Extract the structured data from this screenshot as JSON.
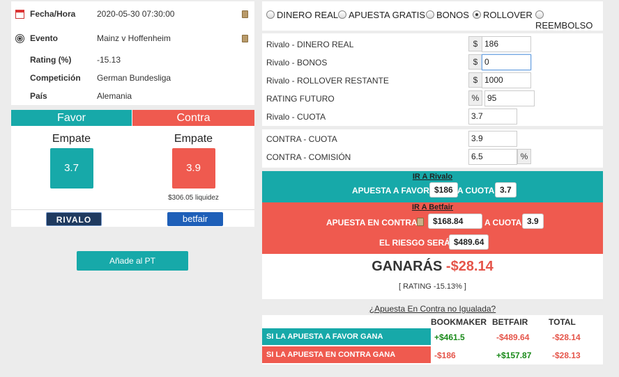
{
  "event_info": {
    "fecha_label": "Fecha/Hora",
    "fecha_value": "2020-05-30 07:30:00",
    "evento_label": "Evento",
    "evento_value": "Mainz v Hoffenheim",
    "rating_label": "Rating (%)",
    "rating_value": "-15.13",
    "competicion_label": "Competición",
    "competicion_value": "German Bundesliga",
    "pais_label": "País",
    "pais_value": "Alemania"
  },
  "favor": {
    "header": "Favor",
    "selection": "Empate",
    "odds": "3.7",
    "bookmaker_logo_text": "RIVALO"
  },
  "contra": {
    "header": "Contra",
    "selection": "Empate",
    "odds": "3.9",
    "liquidity": "$306.05 liquidez",
    "exchange_logo_text": "betfair"
  },
  "add_button": "Añade al PT",
  "modes": [
    {
      "label": "DINERO REAL",
      "selected": false
    },
    {
      "label": "APUESTA GRATIS",
      "selected": false
    },
    {
      "label": "BONOS",
      "selected": false
    },
    {
      "label": "ROLLOVER",
      "selected": true
    },
    {
      "label": "REEMBOLSO",
      "selected": false
    }
  ],
  "form": {
    "dinero_real_label": "Rivalo - DINERO REAL",
    "dinero_real_value": "186",
    "bonos_label": "Rivalo - BONOS",
    "bonos_value": "0",
    "rollover_label": "Rivalo - ROLLOVER RESTANTE",
    "rollover_value": "1000",
    "rating_futuro_label": "RATING FUTURO",
    "rating_futuro_value": "95",
    "cuota_label": "Rivalo - CUOTA",
    "cuota_value": "3.7",
    "contra_cuota_label": "CONTRA - CUOTA",
    "contra_cuota_value": "3.9",
    "comision_label": "CONTRA - COMISIÓN",
    "comision_value": "6.5",
    "currency": "$",
    "percent": "%"
  },
  "results": {
    "ir_rivalo": "IR A Rivalo",
    "apuesta_favor_label": "APUESTA A FAVOR",
    "apuesta_favor_value": "$186",
    "a_cuota_label": "A CUOTA",
    "favor_cuota": "3.7",
    "ir_betfair": "IR A Betfair",
    "apuesta_contra_label": "APUESTA EN CONTRA",
    "apuesta_contra_value": "$168.84",
    "contra_cuota": "3.9",
    "riesgo_label": "EL RIESGO SERÁ",
    "riesgo_value": "$489.64",
    "ganaras_label": "GANARÁS",
    "ganaras_value": "-$28.14",
    "rating_line": "[ RATING -15.13% ]"
  },
  "unmatched_link": "¿Apuesta En Contra no Igualada?",
  "table": {
    "headers": [
      "BOOKMAKER",
      "BETFAIR",
      "TOTAL"
    ],
    "rows": [
      {
        "label": "SI LA APUESTA A FAVOR GANA",
        "bookmaker": "+$461.5",
        "betfair": "-$489.64",
        "total": "-$28.14"
      },
      {
        "label": "SI LA APUESTA EN CONTRA GANA",
        "bookmaker": "-$186",
        "betfair": "+$157.87",
        "total": "-$28.13"
      }
    ]
  },
  "colors": {
    "teal": "#17a9a9",
    "red": "#ef5a4f",
    "positive": "#1a8a1a",
    "negative": "#e5554a"
  }
}
